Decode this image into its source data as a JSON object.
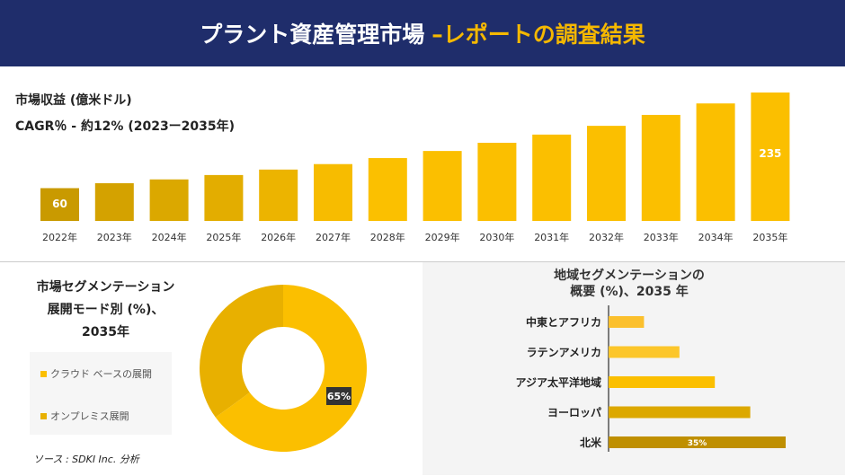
{
  "header": {
    "title_main": "プラント資産管理市場",
    "title_highlight": "–レポートの調査結果"
  },
  "revenue": {
    "label": "市場収益 (億米ドル)",
    "cagr": "CAGR％ - 約12% (2023ー2035年)"
  },
  "chart_data": [
    {
      "type": "bar",
      "categories": [
        "2022年",
        "2023年",
        "2024年",
        "2025年",
        "2026年",
        "2027年",
        "2028年",
        "2029年",
        "2030年",
        "2031年",
        "2032年",
        "2033年",
        "2034年",
        "2035年"
      ],
      "values": [
        60,
        69,
        76,
        84,
        94,
        104,
        115,
        128,
        143,
        158,
        174,
        194,
        215,
        235
      ],
      "data_labels": {
        "2022年": "60",
        "2035年": "235"
      },
      "ylabel": "市場収益 (億米ドル)"
    },
    {
      "type": "pie",
      "title": "市場セグメンテーション展開モード別 (%)、2035年",
      "slices": [
        {
          "name": "クラウド ベースの展開",
          "value": 65,
          "color": "#fbbf00",
          "label": "65%"
        },
        {
          "name": "オンプレミス展開",
          "value": 35,
          "color": "#e8b000"
        }
      ]
    },
    {
      "type": "bar",
      "orientation": "horizontal",
      "title": "地域セグメンテーションの概要 (%)、2035 年",
      "categories": [
        "中東とアフリカ",
        "ラテンアメリカ",
        "アジア太平洋地域",
        "ヨーロッパ",
        "北米"
      ],
      "values": [
        7,
        14,
        21,
        28,
        35
      ],
      "data_labels": {
        "北米": "35%"
      },
      "colors": [
        "#fbc02d",
        "#fcc62a",
        "#fbbf00",
        "#dca800",
        "#bf8f00"
      ]
    }
  ],
  "segment": {
    "title_line1": "市場セグメンテーション",
    "title_line2": "展開モード別 (%)、",
    "title_line3": "2035年"
  },
  "region": {
    "title_line1": "地域セグメンテーションの",
    "title_line2": "概要 (%)、2035 年"
  },
  "source": "ソース : SDKI Inc. 分析"
}
